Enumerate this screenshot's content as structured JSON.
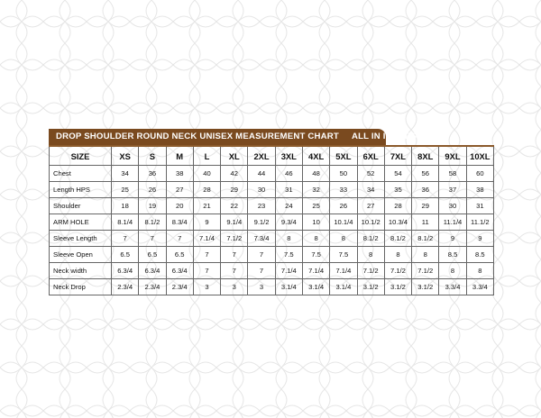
{
  "title": "DROP SHOULDER ROUND NECK UNISEX MEASUREMENT CHART",
  "unit_note": "ALL IN INCHES",
  "header": {
    "label": "SIZE",
    "sizes": [
      "XS",
      "S",
      "M",
      "L",
      "XL",
      "2XL",
      "3XL",
      "4XL",
      "5XL",
      "6XL",
      "7XL",
      "8XL",
      "9XL",
      "10XL"
    ]
  },
  "rows": [
    {
      "label": "Chest",
      "values": [
        "34",
        "36",
        "38",
        "40",
        "42",
        "44",
        "46",
        "48",
        "50",
        "52",
        "54",
        "56",
        "58",
        "60"
      ]
    },
    {
      "label": "Length HPS",
      "values": [
        "25",
        "26",
        "27",
        "28",
        "29",
        "30",
        "31",
        "32",
        "33",
        "34",
        "35",
        "36",
        "37",
        "38"
      ]
    },
    {
      "label": "Shoulder",
      "values": [
        "18",
        "19",
        "20",
        "21",
        "22",
        "23",
        "24",
        "25",
        "26",
        "27",
        "28",
        "29",
        "30",
        "31"
      ]
    },
    {
      "label": "ARM HOLE",
      "values": [
        "8.1/4",
        "8.1/2",
        "8.3/4",
        "9",
        "9.1/4",
        "9.1/2",
        "9.3/4",
        "10",
        "10.1/4",
        "10.1/2",
        "10.3/4",
        "11",
        "11.1/4",
        "11.1/2"
      ]
    },
    {
      "label": "Sleeve Length",
      "values": [
        "7",
        "7",
        "7",
        "7.1/4",
        "7.1/2",
        "7.3/4",
        "8",
        "8",
        "8",
        "8.1/2",
        "8.1/2",
        "8.1/2",
        "9",
        "9"
      ]
    },
    {
      "label": "Sleeve Open",
      "values": [
        "6.5",
        "6.5",
        "6.5",
        "7",
        "7",
        "7",
        "7.5",
        "7.5",
        "7.5",
        "8",
        "8",
        "8",
        "8.5",
        "8.5"
      ]
    },
    {
      "label": "Neck width",
      "values": [
        "6.3/4",
        "6.3/4",
        "6.3/4",
        "7",
        "7",
        "7",
        "7.1/4",
        "7.1/4",
        "7.1/4",
        "7.1/2",
        "7.1/2",
        "7.1/2",
        "8",
        "8"
      ]
    },
    {
      "label": "Neck Drop",
      "values": [
        "2.3/4",
        "2.3/4",
        "2.3/4",
        "3",
        "3",
        "3",
        "3.1/4",
        "3.1/4",
        "3.1/4",
        "3.1/2",
        "3.1/2",
        "3.1/2",
        "3.3/4",
        "3.3/4"
      ]
    }
  ],
  "colors": {
    "title_bar": "#7a4a1f",
    "pattern": "#e6e6e6",
    "grid": "#666666"
  }
}
